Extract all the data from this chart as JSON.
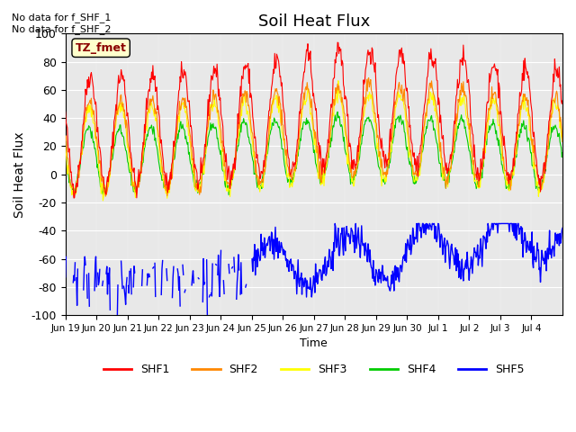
{
  "title": "Soil Heat Flux",
  "ylabel": "Soil Heat Flux",
  "xlabel": "Time",
  "ylim": [
    -100,
    100
  ],
  "annotation_text": "No data for f_SHF_1\nNo data for f_SHF_2",
  "box_label": "TZ_fmet",
  "series_names": [
    "SHF1",
    "SHF2",
    "SHF3",
    "SHF4",
    "SHF5"
  ],
  "series_colors": [
    "#ff0000",
    "#ff8800",
    "#ffff00",
    "#00cc00",
    "#0000ff"
  ],
  "background_color": "#e8e8e8",
  "yticks": [
    -100,
    -80,
    -60,
    -40,
    -20,
    0,
    20,
    40,
    60,
    80,
    100
  ],
  "xtick_labels": [
    "Jun 19",
    "Jun 20",
    "Jun 21",
    "Jun 22",
    "Jun 23",
    "Jun 24",
    "Jun 25",
    "Jun 26",
    "Jun 27",
    "Jun 28",
    "Jun 29",
    "Jun 30",
    "Jul 1",
    "Jul 2",
    "Jul 3",
    "Jul 4"
  ],
  "n_days": 16,
  "title_fontsize": 13
}
